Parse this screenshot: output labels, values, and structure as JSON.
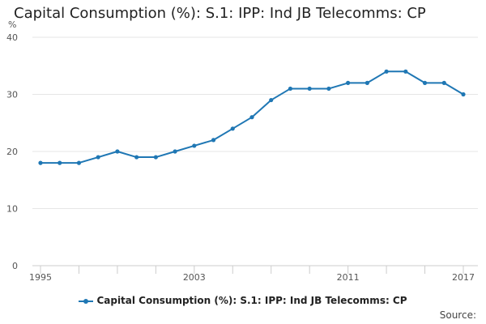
{
  "chart_data": {
    "type": "line",
    "title": "Capital Consumption (%): S.1: IPP: Ind JB Telecomms: CP",
    "ylabel": "%",
    "xlabel": "",
    "ylim": [
      0,
      40
    ],
    "yticks": [
      0,
      10,
      20,
      30,
      40
    ],
    "xlim": [
      1995,
      2017
    ],
    "xtick_labels": [
      "1995",
      "2003",
      "2011",
      "2017"
    ],
    "xtick_values": [
      1995,
      2003,
      2011,
      2017
    ],
    "minor_xticks": [
      1995,
      1997,
      1999,
      2001,
      2003,
      2005,
      2007,
      2009,
      2011,
      2013,
      2015,
      2017
    ],
    "grid": "horizontal",
    "legend_position": "bottom",
    "series": [
      {
        "name": "Capital Consumption (%): S.1: IPP: Ind JB Telecomms: CP",
        "color": "#1f77b4",
        "x": [
          1995,
          1996,
          1997,
          1998,
          1999,
          2000,
          2001,
          2002,
          2003,
          2004,
          2005,
          2006,
          2007,
          2008,
          2009,
          2010,
          2011,
          2012,
          2013,
          2014,
          2015,
          2016,
          2017
        ],
        "values": [
          18,
          18,
          18,
          19,
          20,
          19,
          19,
          20,
          21,
          22,
          24,
          26,
          29,
          31,
          31,
          31,
          32,
          32,
          34,
          34,
          32,
          32,
          30
        ]
      }
    ]
  },
  "legend_label": "Capital Consumption (%): S.1: IPP: Ind JB Telecomms: CP",
  "source_label": "Source:"
}
